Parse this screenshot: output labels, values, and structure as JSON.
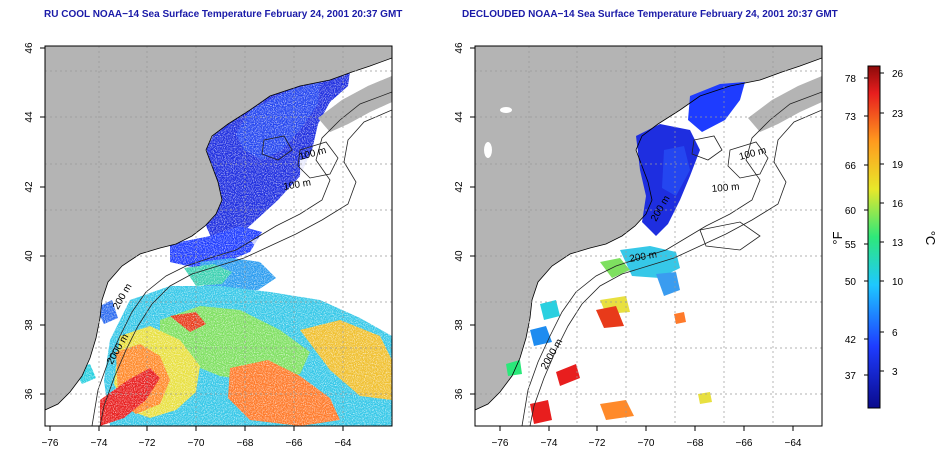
{
  "titles": {
    "left": "RU COOL NOAA−14 Sea Surface Temperature February 24, 2001 20:37 GMT",
    "right": "DECLOUDED NOAA−14 Sea Surface Temperature February 24, 2001 20:37 GMT"
  },
  "axes": {
    "x_ticks": [
      "−76",
      "−74",
      "−72",
      "−70",
      "−68",
      "−66",
      "−64"
    ],
    "y_ticks": [
      "36",
      "38",
      "40",
      "42",
      "44",
      "46"
    ]
  },
  "contour_labels": {
    "left": [
      "100 m",
      "100 m",
      "200 m",
      "2000 m"
    ],
    "right": [
      "100 m",
      "100 m",
      "200 m",
      "200 m",
      "2000 m"
    ]
  },
  "colorbar": {
    "f_label": "°F",
    "c_label": "°C",
    "f_ticks": [
      "78",
      "73",
      "66",
      "60",
      "55",
      "50",
      "42",
      "37"
    ],
    "c_ticks": [
      "26",
      "23",
      "19",
      "16",
      "13",
      "10",
      "6",
      "3"
    ]
  },
  "colors": {
    "land": "#b4b4b4",
    "ocean": "#ffffff",
    "title": "#1a1aa8",
    "scale": [
      "#0a0a8c",
      "#1e3cff",
      "#1ec8ff",
      "#2ee87a",
      "#e8e82a",
      "#ff9a1e",
      "#e81e1e",
      "#8c0a0a"
    ]
  }
}
